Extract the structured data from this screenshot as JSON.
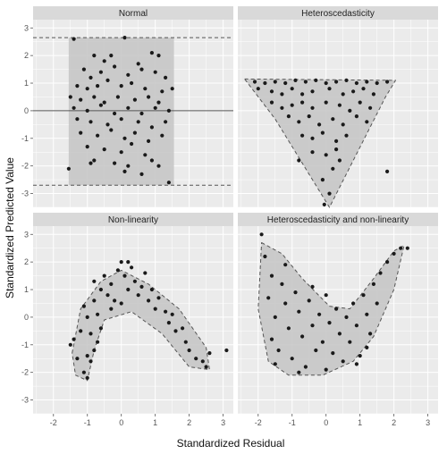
{
  "chart_data": {
    "type": "scatter",
    "xlabel": "Standardized Residual",
    "ylabel": "Standardized Predicted Value",
    "xlim": [
      -2.6,
      3.3
    ],
    "ylim": [
      -3.5,
      3.3
    ],
    "x_ticks": [
      -2,
      -1,
      0,
      1,
      2,
      3
    ],
    "y_ticks": [
      -3,
      -2,
      -1,
      0,
      1,
      2,
      3
    ],
    "grid": true,
    "colors": {
      "panel_background": "#ebebeb",
      "grid": "#ffffff",
      "strip": "#d9d9d9",
      "region_fill": "#c4c4c4",
      "point": "#1a1a1a",
      "line": "#555555"
    },
    "panels": [
      {
        "title": "Normal",
        "region": {
          "shape": "rectangle",
          "xmin": -1.55,
          "xmax": 1.55,
          "ymin": -2.7,
          "ymax": 2.65
        },
        "reference_lines": [
          {
            "y": 0,
            "style": "solid"
          },
          {
            "y": 2.65,
            "style": "dashed"
          },
          {
            "y": -2.7,
            "style": "dashed"
          }
        ],
        "points": [
          [
            -1.4,
            2.6
          ],
          [
            0.1,
            2.65
          ],
          [
            -0.8,
            2.0
          ],
          [
            -0.5,
            1.8
          ],
          [
            -0.3,
            2.0
          ],
          [
            0.9,
            2.1
          ],
          [
            1.1,
            2.0
          ],
          [
            0.5,
            1.7
          ],
          [
            -1.1,
            1.5
          ],
          [
            -0.9,
            1.2
          ],
          [
            -0.6,
            1.4
          ],
          [
            -0.2,
            1.6
          ],
          [
            0.2,
            1.3
          ],
          [
            0.6,
            1.5
          ],
          [
            1.0,
            1.4
          ],
          [
            1.3,
            1.2
          ],
          [
            -1.3,
            0.9
          ],
          [
            -1.0,
            0.8
          ],
          [
            -0.7,
            0.9
          ],
          [
            -0.4,
            1.1
          ],
          [
            0.0,
            0.9
          ],
          [
            0.3,
            1.0
          ],
          [
            0.7,
            0.8
          ],
          [
            1.2,
            0.7
          ],
          [
            1.5,
            0.8
          ],
          [
            -1.5,
            0.5
          ],
          [
            -1.2,
            0.4
          ],
          [
            -0.8,
            0.5
          ],
          [
            -0.5,
            0.3
          ],
          [
            -0.1,
            0.5
          ],
          [
            0.4,
            0.4
          ],
          [
            0.8,
            0.5
          ],
          [
            1.1,
            0.3
          ],
          [
            -1.4,
            0.1
          ],
          [
            -1.0,
            0.0
          ],
          [
            -0.6,
            0.2
          ],
          [
            -0.2,
            -0.1
          ],
          [
            0.2,
            0.1
          ],
          [
            0.6,
            -0.1
          ],
          [
            1.0,
            0.1
          ],
          [
            1.4,
            0.0
          ],
          [
            -1.3,
            -0.3
          ],
          [
            -0.9,
            -0.4
          ],
          [
            -0.4,
            -0.5
          ],
          [
            0.0,
            -0.3
          ],
          [
            0.5,
            -0.4
          ],
          [
            0.9,
            -0.6
          ],
          [
            1.3,
            -0.4
          ],
          [
            -1.2,
            -0.8
          ],
          [
            -0.7,
            -0.9
          ],
          [
            -0.3,
            -0.7
          ],
          [
            0.1,
            -1.0
          ],
          [
            0.4,
            -0.8
          ],
          [
            0.8,
            -1.1
          ],
          [
            1.2,
            -0.9
          ],
          [
            -1.0,
            -1.3
          ],
          [
            -0.5,
            -1.4
          ],
          [
            0.0,
            -1.5
          ],
          [
            0.3,
            -1.2
          ],
          [
            0.7,
            -1.6
          ],
          [
            -0.8,
            -1.8
          ],
          [
            -0.2,
            -1.9
          ],
          [
            0.2,
            -2.0
          ],
          [
            0.9,
            -1.8
          ],
          [
            1.1,
            -2.0
          ],
          [
            -1.55,
            -2.1
          ],
          [
            0.6,
            -2.3
          ],
          [
            1.4,
            -2.6
          ],
          [
            -0.9,
            -1.9
          ],
          [
            0.1,
            -2.2
          ]
        ]
      },
      {
        "title": "Heteroscedasticity",
        "region": {
          "shape": "polygon",
          "vertices": [
            [
              -2.4,
              1.15
            ],
            [
              2.05,
              1.1
            ],
            [
              1.75,
              0.5
            ],
            [
              0.1,
              -3.5
            ],
            [
              -1.5,
              -0.3
            ]
          ]
        },
        "points": [
          [
            -2.1,
            1.05
          ],
          [
            -1.8,
            1.0
          ],
          [
            -1.5,
            1.05
          ],
          [
            -1.2,
            1.0
          ],
          [
            -0.9,
            1.1
          ],
          [
            -0.6,
            1.05
          ],
          [
            -0.3,
            1.1
          ],
          [
            0.0,
            1.0
          ],
          [
            0.3,
            1.05
          ],
          [
            0.6,
            1.1
          ],
          [
            0.9,
            1.0
          ],
          [
            1.2,
            1.05
          ],
          [
            1.5,
            1.0
          ],
          [
            1.8,
            1.05
          ],
          [
            -2.0,
            0.8
          ],
          [
            -1.6,
            0.7
          ],
          [
            -1.3,
            0.6
          ],
          [
            -1.0,
            0.8
          ],
          [
            -0.7,
            0.6
          ],
          [
            -0.4,
            0.7
          ],
          [
            0.1,
            0.8
          ],
          [
            0.5,
            0.6
          ],
          [
            0.8,
            0.7
          ],
          [
            1.1,
            0.8
          ],
          [
            1.4,
            0.6
          ],
          [
            -1.6,
            0.3
          ],
          [
            -1.3,
            0.1
          ],
          [
            -1.0,
            0.2
          ],
          [
            -0.7,
            0.3
          ],
          [
            -0.4,
            0.1
          ],
          [
            0.0,
            0.3
          ],
          [
            0.4,
            0.2
          ],
          [
            0.7,
            0.0
          ],
          [
            1.0,
            0.3
          ],
          [
            1.3,
            0.1
          ],
          [
            -1.1,
            -0.2
          ],
          [
            -0.8,
            -0.4
          ],
          [
            -0.5,
            -0.2
          ],
          [
            -0.2,
            -0.5
          ],
          [
            0.2,
            -0.3
          ],
          [
            0.5,
            -0.5
          ],
          [
            0.9,
            -0.2
          ],
          [
            1.2,
            -0.4
          ],
          [
            -0.7,
            -0.9
          ],
          [
            -0.4,
            -1.0
          ],
          [
            -0.1,
            -0.8
          ],
          [
            0.3,
            -1.1
          ],
          [
            0.6,
            -0.9
          ],
          [
            -0.4,
            -1.5
          ],
          [
            0.0,
            -1.6
          ],
          [
            0.3,
            -1.4
          ],
          [
            -0.8,
            -1.8
          ],
          [
            0.2,
            -2.1
          ],
          [
            -0.1,
            -2.5
          ],
          [
            0.1,
            -3.0
          ],
          [
            -0.05,
            -3.4
          ],
          [
            1.8,
            -2.2
          ],
          [
            0.4,
            -1.8
          ]
        ]
      },
      {
        "title": "Non-linearity",
        "region": {
          "shape": "polygon",
          "vertices": [
            [
              -1.45,
              -1.3
            ],
            [
              -1.2,
              0.3
            ],
            [
              -0.6,
              1.3
            ],
            [
              0.0,
              1.7
            ],
            [
              0.8,
              1.2
            ],
            [
              1.7,
              0.3
            ],
            [
              2.5,
              -1.1
            ],
            [
              2.6,
              -1.9
            ],
            [
              2.0,
              -1.8
            ],
            [
              1.2,
              -0.6
            ],
            [
              0.3,
              0.2
            ],
            [
              -0.5,
              -0.1
            ],
            [
              -0.8,
              -1.2
            ],
            [
              -1.0,
              -2.3
            ],
            [
              -1.35,
              -2.1
            ]
          ]
        },
        "points": [
          [
            -1.5,
            -1.0
          ],
          [
            -1.3,
            -1.5
          ],
          [
            -1.1,
            -2.0
          ],
          [
            -1.0,
            -2.2
          ],
          [
            -1.2,
            -0.5
          ],
          [
            -1.0,
            0.0
          ],
          [
            -0.9,
            -0.6
          ],
          [
            -0.8,
            -1.2
          ],
          [
            -1.1,
            0.4
          ],
          [
            -0.8,
            0.6
          ],
          [
            -0.7,
            0.1
          ],
          [
            -0.6,
            -0.4
          ],
          [
            -0.9,
            -1.6
          ],
          [
            -0.6,
            1.0
          ],
          [
            -0.4,
            0.8
          ],
          [
            -0.3,
            0.3
          ],
          [
            -0.5,
            1.5
          ],
          [
            -0.3,
            1.2
          ],
          [
            -0.1,
            1.7
          ],
          [
            0.0,
            2.0
          ],
          [
            0.1,
            1.5
          ],
          [
            0.2,
            1.0
          ],
          [
            0.3,
            1.8
          ],
          [
            0.4,
            1.3
          ],
          [
            0.5,
            0.8
          ],
          [
            0.6,
            1.1
          ],
          [
            0.8,
            0.6
          ],
          [
            0.9,
            1.0
          ],
          [
            1.0,
            0.3
          ],
          [
            1.1,
            0.7
          ],
          [
            1.3,
            0.2
          ],
          [
            1.4,
            -0.2
          ],
          [
            1.5,
            0.1
          ],
          [
            1.6,
            -0.5
          ],
          [
            1.8,
            -0.4
          ],
          [
            1.9,
            -0.9
          ],
          [
            2.0,
            -1.2
          ],
          [
            2.2,
            -1.5
          ],
          [
            2.4,
            -1.6
          ],
          [
            2.5,
            -1.8
          ],
          [
            3.1,
            -1.2
          ],
          [
            2.6,
            -1.3
          ],
          [
            -0.2,
            0.6
          ],
          [
            0.0,
            0.5
          ],
          [
            -0.7,
            -0.9
          ],
          [
            -1.0,
            -1.4
          ],
          [
            0.7,
            1.6
          ],
          [
            0.2,
            2.0
          ],
          [
            -0.8,
            1.3
          ],
          [
            -1.4,
            -0.8
          ]
        ]
      },
      {
        "title": "Heteroscedasticity and non-linearity",
        "region": {
          "shape": "polygon",
          "vertices": [
            [
              -1.9,
              2.7
            ],
            [
              -1.3,
              2.3
            ],
            [
              -0.7,
              1.4
            ],
            [
              0.1,
              0.4
            ],
            [
              0.7,
              0.3
            ],
            [
              1.4,
              1.4
            ],
            [
              2.0,
              2.4
            ],
            [
              2.3,
              2.6
            ],
            [
              2.0,
              1.0
            ],
            [
              1.4,
              -0.7
            ],
            [
              0.8,
              -1.6
            ],
            [
              -0.1,
              -2.1
            ],
            [
              -1.1,
              -2.1
            ],
            [
              -1.7,
              -1.6
            ],
            [
              -2.0,
              0.3
            ]
          ]
        },
        "points": [
          [
            -1.9,
            3.0
          ],
          [
            -1.8,
            2.2
          ],
          [
            -1.6,
            1.5
          ],
          [
            -1.7,
            0.7
          ],
          [
            -1.5,
            0.0
          ],
          [
            -1.6,
            -0.8
          ],
          [
            -1.4,
            -1.2
          ],
          [
            -1.3,
            1.2
          ],
          [
            -1.2,
            0.5
          ],
          [
            -1.1,
            -0.4
          ],
          [
            -1.0,
            -1.5
          ],
          [
            -0.9,
            0.9
          ],
          [
            -0.8,
            0.2
          ],
          [
            -0.7,
            -0.7
          ],
          [
            -0.6,
            -1.8
          ],
          [
            -0.5,
            0.6
          ],
          [
            -0.4,
            -0.3
          ],
          [
            -0.3,
            -1.2
          ],
          [
            -0.2,
            0.1
          ],
          [
            -0.1,
            -0.9
          ],
          [
            0.0,
            -1.9
          ],
          [
            0.1,
            -0.2
          ],
          [
            0.2,
            -1.3
          ],
          [
            0.3,
            0.3
          ],
          [
            0.4,
            -0.6
          ],
          [
            0.5,
            -1.6
          ],
          [
            0.6,
            0.0
          ],
          [
            0.7,
            -0.9
          ],
          [
            0.8,
            0.5
          ],
          [
            0.9,
            -0.3
          ],
          [
            1.0,
            -1.4
          ],
          [
            1.1,
            0.8
          ],
          [
            1.2,
            0.1
          ],
          [
            1.3,
            -0.6
          ],
          [
            1.4,
            1.2
          ],
          [
            1.5,
            0.5
          ],
          [
            1.6,
            1.6
          ],
          [
            1.8,
            2.0
          ],
          [
            2.0,
            2.3
          ],
          [
            2.2,
            2.5
          ],
          [
            2.4,
            2.5
          ],
          [
            -1.5,
            -1.7
          ],
          [
            -0.8,
            -2.0
          ],
          [
            0.9,
            -1.7
          ],
          [
            -1.2,
            1.9
          ],
          [
            0.0,
            0.8
          ],
          [
            1.2,
            -1.1
          ],
          [
            -0.4,
            1.1
          ]
        ]
      }
    ]
  }
}
